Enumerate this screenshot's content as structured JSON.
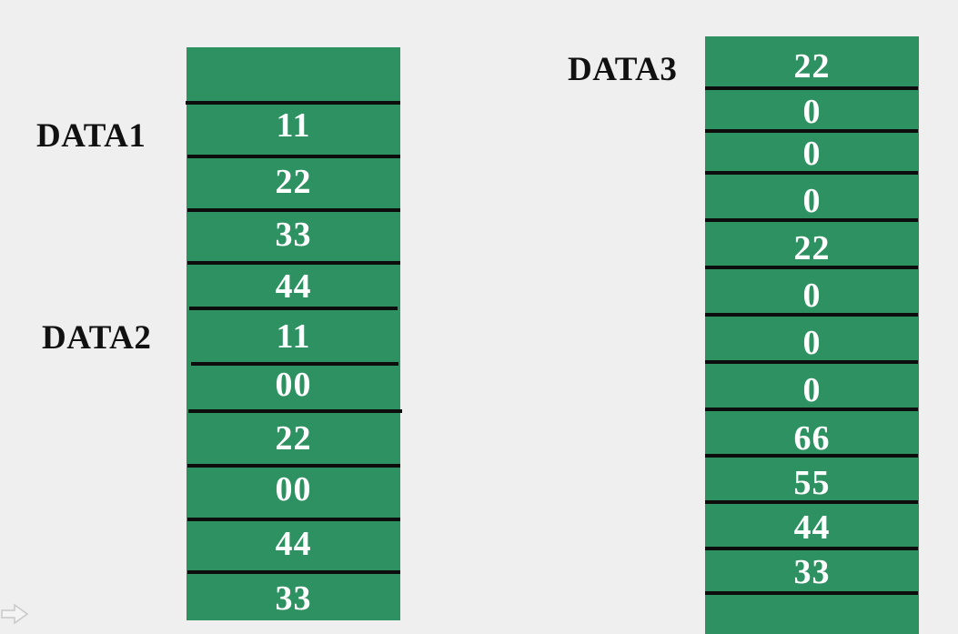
{
  "labels": {
    "data1": "DATA1",
    "data2": "DATA2",
    "data3": "DATA3"
  },
  "left_column": {
    "cells": [
      "11",
      "22",
      "33",
      "44",
      "11",
      "00",
      "22",
      "00",
      "44",
      "33"
    ]
  },
  "right_column": {
    "cells": [
      "22",
      "0",
      "0",
      "0",
      "22",
      "0",
      "0",
      "0",
      "66",
      "55",
      "44",
      "33"
    ]
  },
  "colors": {
    "cell_fill": "#2e9161",
    "separator": "#0d0d0d",
    "cell_text": "#ffffff",
    "label_text": "#111111",
    "background": "#efefef"
  },
  "icons": {
    "corner": "arrow-right-icon"
  }
}
